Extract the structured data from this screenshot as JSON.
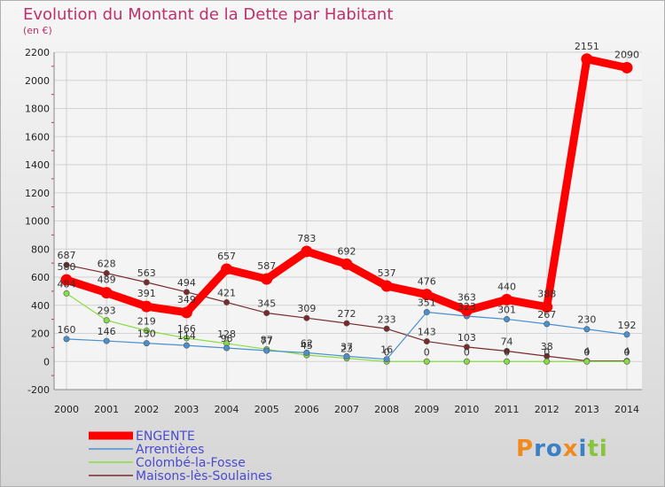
{
  "chart_data": {
    "type": "line",
    "title": "Evolution du Montant de la Dette par Habitant",
    "subtitle": "(en €)",
    "x": [
      "2000",
      "2001",
      "2002",
      "2003",
      "2004",
      "2005",
      "2006",
      "2007",
      "2008",
      "2009",
      "2010",
      "2011",
      "2012",
      "2013",
      "2014"
    ],
    "ylim": [
      -200,
      2200
    ],
    "yticks": [
      -200,
      0,
      200,
      400,
      600,
      800,
      1000,
      1200,
      1400,
      1600,
      1800,
      2000,
      2200
    ],
    "grid": true,
    "legend_position": "bottom-left",
    "series": [
      {
        "name": "ENGENTE",
        "color": "#ff0000",
        "values": [
          580,
          489,
          391,
          349,
          657,
          587,
          783,
          692,
          537,
          476,
          363,
          440,
          388,
          2151,
          2090
        ]
      },
      {
        "name": "Arrentières",
        "color": "#4a90d0",
        "values": [
          160,
          146,
          130,
          114,
          96,
          77,
          62,
          37,
          16,
          351,
          323,
          301,
          267,
          230,
          192
        ]
      },
      {
        "name": "Colombé-la-Fosse",
        "color": "#88dd44",
        "values": [
          484,
          293,
          219,
          166,
          128,
          87,
          45,
          23,
          0,
          0,
          0,
          0,
          0,
          0,
          0
        ]
      },
      {
        "name": "Maisons-lès-Soulaines",
        "color": "#7a2a2a",
        "values": [
          687,
          628,
          563,
          494,
          421,
          345,
          309,
          272,
          233,
          143,
          103,
          74,
          38,
          4,
          4
        ]
      }
    ]
  },
  "logo": {
    "text": "Proxiti"
  }
}
